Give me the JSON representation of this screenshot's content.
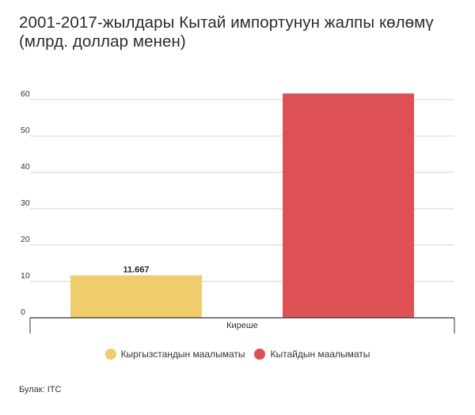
{
  "chart_data": {
    "type": "bar",
    "title": "2001-2017-жылдары Кытай импортунун жалпы көлөмү (млрд. доллар менен)",
    "categories": [
      "Киреше"
    ],
    "series": [
      {
        "name": "Кыргызстандын маалыматы",
        "values": [
          11.667
        ],
        "color": "#efcd6c",
        "label": "11.667"
      },
      {
        "name": "Кытайдын маалыматы",
        "values": [
          61.7
        ],
        "color": "#dd5155",
        "label": ""
      }
    ],
    "yticks": [
      0,
      10,
      20,
      30,
      40,
      50,
      60
    ],
    "ylim": [
      0,
      60
    ],
    "grid": true,
    "legend_position": "bottom"
  },
  "source": "Булак: ITC"
}
